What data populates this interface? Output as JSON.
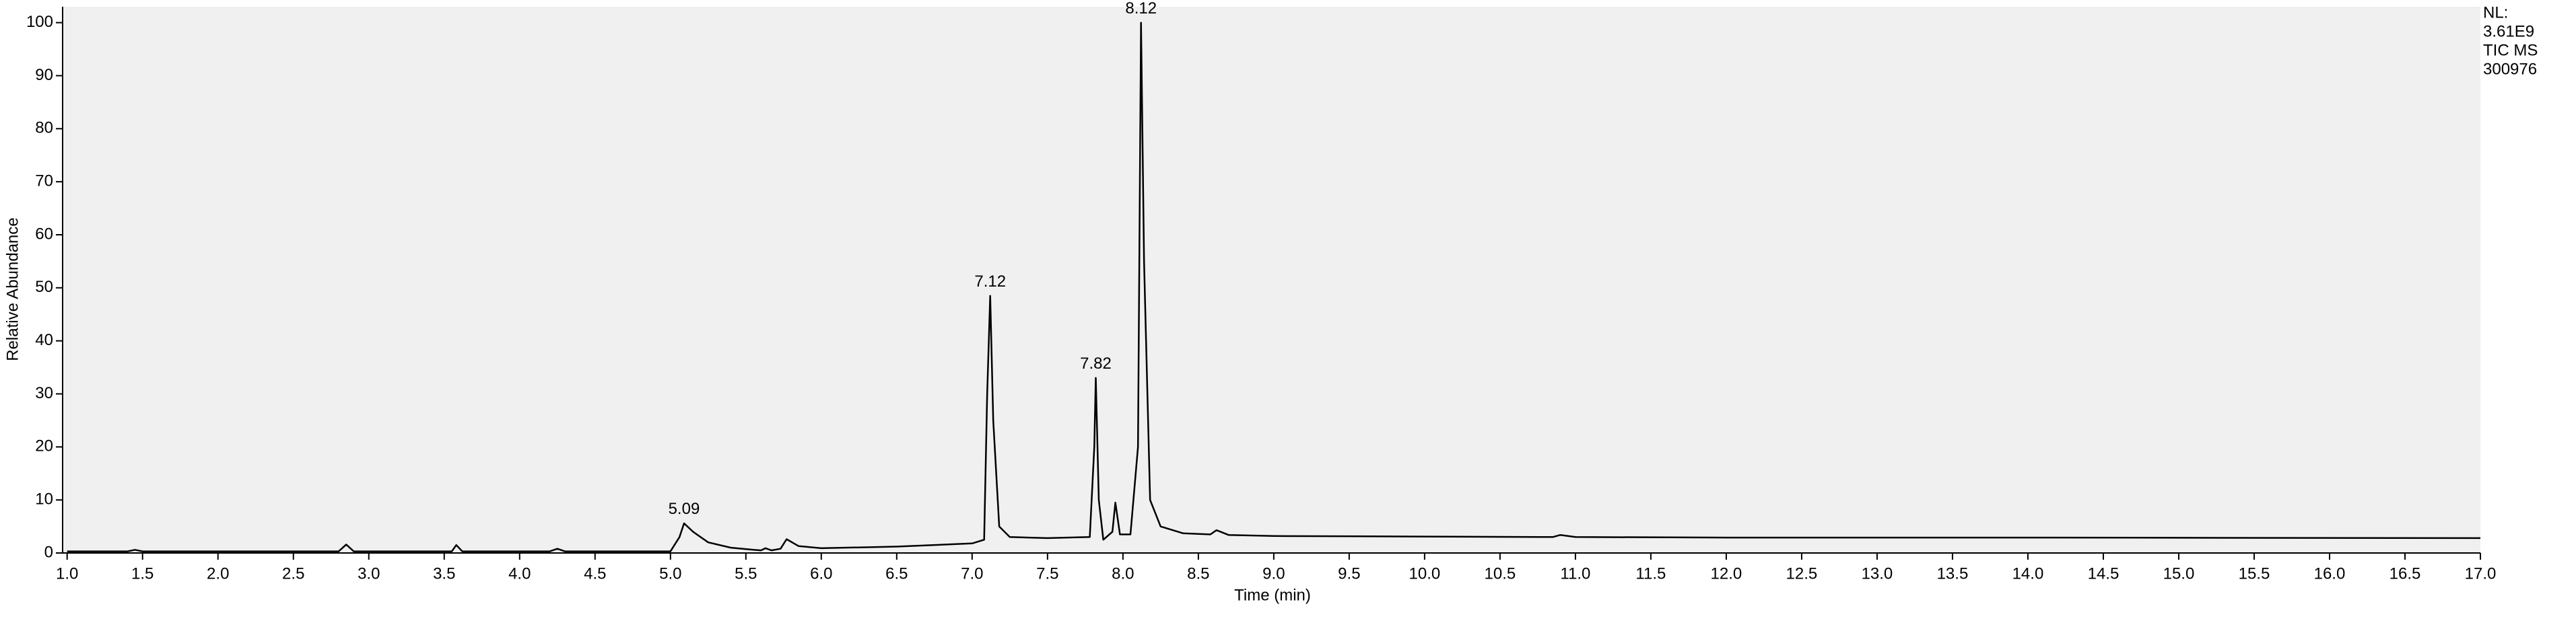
{
  "chart_data": {
    "type": "line",
    "x_label": "Time (min)",
    "y_label": "Relative Abundance",
    "xlim": [
      0.97,
      17
    ],
    "ylim": [
      0,
      103
    ],
    "xticks": [
      {
        "value": 1,
        "label": "1.0"
      },
      1.5,
      {
        "value": 2,
        "label": "2.0"
      },
      2.5,
      {
        "value": 3,
        "label": "3.0"
      },
      3.5,
      {
        "value": 4,
        "label": "4.0"
      },
      4.5,
      {
        "value": 5,
        "label": "5.0"
      },
      5.5,
      {
        "value": 6,
        "label": "6.0"
      },
      6.5,
      {
        "value": 7,
        "label": "7.0"
      },
      7.5,
      {
        "value": 8,
        "label": "8.0"
      },
      8.5,
      {
        "value": 9,
        "label": "9.0"
      },
      9.5,
      {
        "value": 10,
        "label": "10.0"
      },
      10.5,
      {
        "value": 11,
        "label": "11.0"
      },
      11.5,
      {
        "value": 12,
        "label": "12.0"
      },
      12.5,
      {
        "value": 13,
        "label": "13.0"
      },
      13.5,
      {
        "value": 14,
        "label": "14.0"
      },
      14.5,
      {
        "value": 15,
        "label": "15.0"
      },
      15.5,
      {
        "value": 16,
        "label": "16.0"
      },
      16.5,
      {
        "value": 17,
        "label": "17.0"
      }
    ],
    "yticks": [
      0,
      10,
      20,
      30,
      40,
      50,
      60,
      70,
      80,
      90,
      100
    ],
    "color": "#000000",
    "x": [
      1.0,
      1.4,
      1.45,
      1.5,
      2.0,
      2.5,
      2.8,
      2.85,
      2.9,
      3.5,
      3.55,
      3.58,
      3.62,
      4.2,
      4.25,
      4.3,
      4.8,
      5.0,
      5.06,
      5.09,
      5.15,
      5.25,
      5.4,
      5.55,
      5.6,
      5.63,
      5.67,
      5.73,
      5.77,
      5.85,
      6.0,
      6.5,
      7.0,
      7.08,
      7.1,
      7.12,
      7.14,
      7.18,
      7.25,
      7.5,
      7.78,
      7.81,
      7.82,
      7.84,
      7.87,
      7.93,
      7.95,
      7.98,
      8.05,
      8.1,
      8.12,
      8.14,
      8.18,
      8.25,
      8.4,
      8.58,
      8.62,
      8.7,
      9.0,
      10.0,
      10.85,
      10.9,
      11.0,
      12.0,
      14.0,
      17.0
    ],
    "values": [
      0.3,
      0.3,
      0.6,
      0.3,
      0.3,
      0.3,
      0.3,
      1.6,
      0.3,
      0.3,
      0.3,
      1.5,
      0.3,
      0.3,
      0.8,
      0.3,
      0.3,
      0.3,
      3.0,
      5.6,
      4.0,
      2.0,
      1.0,
      0.6,
      0.5,
      0.9,
      0.5,
      0.8,
      2.6,
      1.3,
      0.9,
      1.2,
      1.8,
      2.5,
      30,
      48.5,
      25,
      5,
      3,
      2.8,
      3,
      20,
      33,
      10,
      2.5,
      4,
      9.5,
      3.5,
      3.5,
      20,
      100,
      55,
      10,
      5,
      3.7,
      3.5,
      4.3,
      3.4,
      3.2,
      3.1,
      3.0,
      3.4,
      3.0,
      2.9,
      2.9,
      2.8
    ],
    "annotations": [
      {
        "text": "5.09",
        "x": 5.09
      },
      {
        "text": "7.12",
        "x": 7.12
      },
      {
        "text": "7.82",
        "x": 7.82
      },
      {
        "text": "8.12",
        "x": 8.12
      }
    ],
    "side_labels": [
      "NL:",
      "3.61E9",
      "TIC  MS",
      "300976"
    ]
  }
}
